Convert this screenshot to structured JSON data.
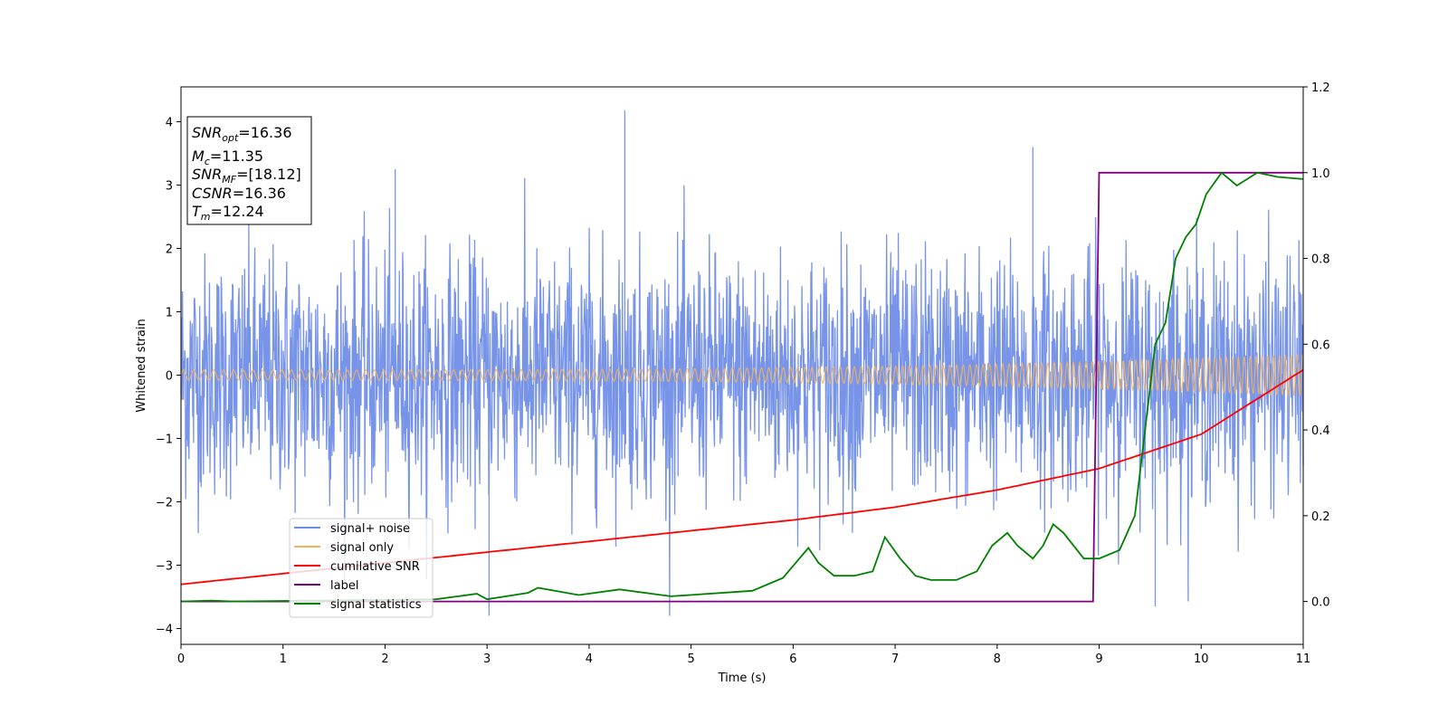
{
  "chart_data": {
    "type": "line",
    "xlabel": "Time (s)",
    "ylabel": "Whitened strain",
    "xlim": [
      0,
      11
    ],
    "ylim": [
      -4.25,
      4.55
    ],
    "y2lim": [
      -0.1,
      1.2
    ],
    "x_ticks": [
      "0",
      "1",
      "2",
      "3",
      "4",
      "5",
      "6",
      "7",
      "8",
      "9",
      "10",
      "11"
    ],
    "y_ticks": [
      "−4",
      "−3",
      "−2",
      "−1",
      "0",
      "1",
      "2",
      "3",
      "4"
    ],
    "y2_ticks": [
      "0.0",
      "0.2",
      "0.4",
      "0.6",
      "0.8",
      "1.0",
      "1.2"
    ],
    "legend": {
      "placement": "lower-left",
      "entries": [
        "signal+ noise",
        "signal only",
        "cumilative SNR",
        "label",
        "signal statistics"
      ]
    },
    "annotation": {
      "snr_opt": {
        "name": "SNR",
        "sub": "opt",
        "value": "=16.36"
      },
      "mc": {
        "name": "M",
        "sub": "c",
        "value": "=11.35"
      },
      "snr_mf": {
        "name": "SNR",
        "sub": "MF",
        "value": "=[18.12]"
      },
      "csnr": {
        "name": "CSNR",
        "value": "=16.36"
      },
      "tm": {
        "name": "T",
        "sub": "m",
        "value": "=12.24"
      }
    },
    "series": [
      {
        "name": "signal+ noise",
        "axis": "left",
        "color": "#6b8be6",
        "description": "noise-dominated strain, approx gaussian sigma 1, spikes up to 4.2 near t=4.35 and down to -3.8 near t=3.0"
      },
      {
        "name": "signal only",
        "axis": "left",
        "color": "#f5b35a",
        "amplitude_start": 0.08,
        "amplitude_end": 0.33
      },
      {
        "name": "cumilative SNR",
        "axis": "right",
        "x": [
          0,
          1,
          2,
          3,
          4,
          5,
          6,
          7,
          8,
          9,
          10,
          11
        ],
        "values": [
          0.04,
          0.065,
          0.09,
          0.115,
          0.14,
          0.165,
          0.19,
          0.22,
          0.26,
          0.31,
          0.39,
          0.54
        ]
      },
      {
        "name": "label",
        "axis": "right",
        "x": [
          0,
          8.94,
          9.0,
          11
        ],
        "values": [
          0.0,
          0.0,
          1.0,
          1.0
        ]
      },
      {
        "name": "signal statistics",
        "axis": "right",
        "x": [
          0,
          0.3,
          0.5,
          2.5,
          2.9,
          3.0,
          3.4,
          3.5,
          3.9,
          4.3,
          4.8,
          5.6,
          5.9,
          6.15,
          6.25,
          6.4,
          6.6,
          6.78,
          6.9,
          7.05,
          7.2,
          7.35,
          7.6,
          7.8,
          7.95,
          8.1,
          8.2,
          8.35,
          8.45,
          8.55,
          8.65,
          8.85,
          9.0,
          9.2,
          9.35,
          9.45,
          9.55,
          9.65,
          9.75,
          9.85,
          9.95,
          10.05,
          10.2,
          10.35,
          10.55,
          10.75,
          11.0
        ],
        "values": [
          0.0,
          0.002,
          0.0,
          0.005,
          0.018,
          0.005,
          0.02,
          0.032,
          0.015,
          0.028,
          0.012,
          0.025,
          0.055,
          0.125,
          0.09,
          0.06,
          0.06,
          0.07,
          0.15,
          0.1,
          0.06,
          0.05,
          0.05,
          0.07,
          0.13,
          0.16,
          0.13,
          0.1,
          0.13,
          0.18,
          0.16,
          0.1,
          0.1,
          0.12,
          0.2,
          0.4,
          0.6,
          0.65,
          0.8,
          0.85,
          0.88,
          0.95,
          1.0,
          0.97,
          1.0,
          0.99,
          0.985
        ]
      }
    ]
  }
}
